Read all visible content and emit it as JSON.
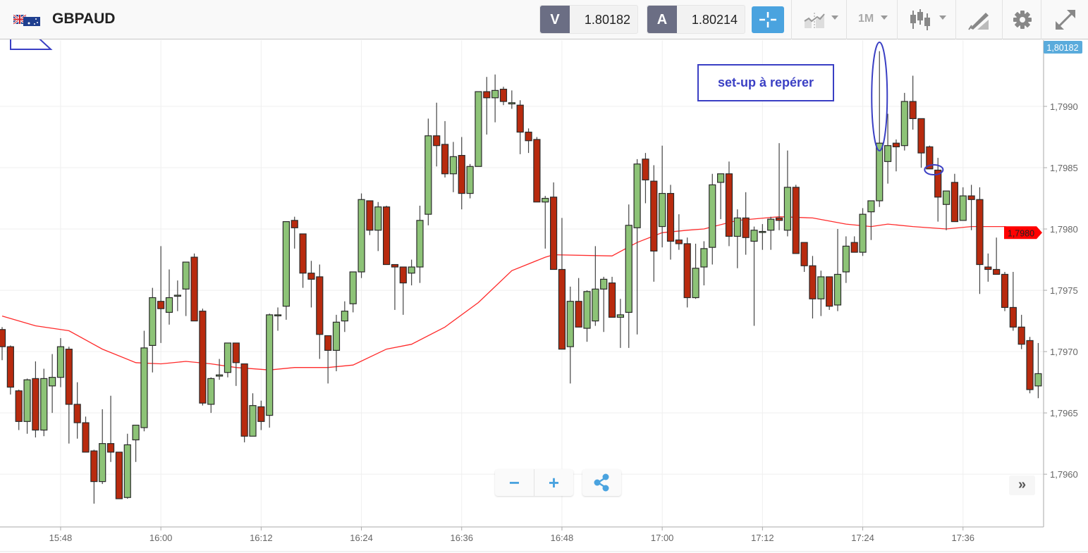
{
  "header": {
    "symbol": "GBPAUD",
    "flag_icon": "gb-au-flag-icon",
    "sell": {
      "label": "V",
      "value": "1.80182"
    },
    "buy": {
      "label": "A",
      "value": "1.80214"
    },
    "timeframe": "1M",
    "icons": [
      "crosshair-icon",
      "chart-type-icon",
      "timeframe-dropdown",
      "candles-icon",
      "drawing-tools-icon",
      "gear-icon",
      "fullscreen-icon"
    ]
  },
  "annotation": {
    "text": "set-up à repérer",
    "color": "#3a3fc4"
  },
  "controls": {
    "zoom_out": "−",
    "zoom_in": "+",
    "scroll_right": "»"
  },
  "colors": {
    "up": "#8dc377",
    "down": "#b82a0e",
    "ma": "#ff2b2b",
    "bid_tag": "#5aabdc",
    "ma_tag": "#ff0000",
    "accent": "#4aa3df"
  },
  "chart_data": {
    "type": "candlestick",
    "title": "GBPAUD",
    "interval_minutes": 1,
    "start_time": "15:41",
    "ylim": [
      1.79557,
      1.79954
    ],
    "grid": true,
    "y_ticks": [
      1.796,
      1.7965,
      1.797,
      1.7975,
      1.798,
      1.7985,
      1.799
    ],
    "y_tick_labels": [
      "1,7960",
      "1,7965",
      "1,7970",
      "1,7975",
      "1,7980",
      "1,7985",
      "1,7990"
    ],
    "x_ticks": [
      {
        "i": 8,
        "label": "15:48"
      },
      {
        "i": 20,
        "label": "16:00"
      },
      {
        "i": 32,
        "label": "16:12"
      },
      {
        "i": 44,
        "label": "16:24"
      },
      {
        "i": 56,
        "label": "16:36"
      },
      {
        "i": 68,
        "label": "16:48"
      },
      {
        "i": 80,
        "label": "17:00"
      },
      {
        "i": 92,
        "label": "17:12"
      },
      {
        "i": 104,
        "label": "17:24"
      },
      {
        "i": 116,
        "label": "17:36"
      }
    ],
    "bid_tag": "1,80182",
    "ma_tag": "1,7980",
    "ohlc_fields": [
      "open",
      "high",
      "low",
      "close"
    ],
    "ohlc": [
      [
        1.79718,
        1.7972,
        1.79693,
        1.79704
      ],
      [
        1.79704,
        1.79705,
        1.79665,
        1.79671
      ],
      [
        1.79668,
        1.79669,
        1.79636,
        1.79643
      ],
      [
        1.79643,
        1.79678,
        1.79633,
        1.79677
      ],
      [
        1.79678,
        1.79692,
        1.7963,
        1.79636
      ],
      [
        1.79636,
        1.79686,
        1.79631,
        1.79678
      ],
      [
        1.79672,
        1.79698,
        1.7965,
        1.79679
      ],
      [
        1.79679,
        1.79711,
        1.79671,
        1.79704
      ],
      [
        1.79702,
        1.79704,
        1.79625,
        1.79657
      ],
      [
        1.79657,
        1.79675,
        1.79629,
        1.79642
      ],
      [
        1.79642,
        1.79647,
        1.79618,
        1.79618
      ],
      [
        1.79619,
        1.7962,
        1.79576,
        1.79594
      ],
      [
        1.79594,
        1.79653,
        1.79592,
        1.79625
      ],
      [
        1.79625,
        1.79664,
        1.7961,
        1.79618
      ],
      [
        1.79618,
        1.79618,
        1.7958,
        1.7958
      ],
      [
        1.79581,
        1.79633,
        1.7958,
        1.79624
      ],
      [
        1.79628,
        1.7964,
        1.7961,
        1.7964
      ],
      [
        1.79638,
        1.79717,
        1.79635,
        1.79703
      ],
      [
        1.79705,
        1.79752,
        1.79683,
        1.79744
      ],
      [
        1.79741,
        1.79786,
        1.79707,
        1.79735
      ],
      [
        1.79732,
        1.79767,
        1.79722,
        1.79744
      ],
      [
        1.79746,
        1.79758,
        1.79733,
        1.79746
      ],
      [
        1.79751,
        1.79773,
        1.79729,
        1.79773
      ],
      [
        1.79777,
        1.7978,
        1.79725,
        1.79725
      ],
      [
        1.79733,
        1.79735,
        1.79656,
        1.79658
      ],
      [
        1.79657,
        1.79679,
        1.7965,
        1.79678
      ],
      [
        1.7968,
        1.79694,
        1.79677,
        1.79681
      ],
      [
        1.79683,
        1.79707,
        1.79679,
        1.79707
      ],
      [
        1.79707,
        1.79707,
        1.79672,
        1.79691
      ],
      [
        1.7969,
        1.7969,
        1.79626,
        1.79631
      ],
      [
        1.79631,
        1.79666,
        1.79631,
        1.79656
      ],
      [
        1.79655,
        1.7966,
        1.79636,
        1.79643
      ],
      [
        1.79648,
        1.79731,
        1.79638,
        1.7973
      ],
      [
        1.7973,
        1.79736,
        1.79717,
        1.7973
      ],
      [
        1.79737,
        1.79806,
        1.79726,
        1.79806
      ],
      [
        1.79807,
        1.7981,
        1.79784,
        1.79801
      ],
      [
        1.79796,
        1.79796,
        1.79752,
        1.79764
      ],
      [
        1.79764,
        1.79774,
        1.79736,
        1.79759
      ],
      [
        1.79761,
        1.79771,
        1.79694,
        1.79714
      ],
      [
        1.79713,
        1.79713,
        1.79674,
        1.79701
      ],
      [
        1.79701,
        1.7973,
        1.79684,
        1.79724
      ],
      [
        1.79725,
        1.79741,
        1.79716,
        1.79733
      ],
      [
        1.79739,
        1.79765,
        1.79732,
        1.79765
      ],
      [
        1.79765,
        1.79829,
        1.7976,
        1.79824
      ],
      [
        1.79823,
        1.79823,
        1.79795,
        1.79799
      ],
      [
        1.79799,
        1.79822,
        1.79782,
        1.79818
      ],
      [
        1.79818,
        1.79819,
        1.79771,
        1.79771
      ],
      [
        1.79771,
        1.79771,
        1.79734,
        1.79769
      ],
      [
        1.79769,
        1.79769,
        1.7973,
        1.79756
      ],
      [
        1.79764,
        1.79775,
        1.79754,
        1.79769
      ],
      [
        1.79769,
        1.79819,
        1.79756,
        1.79807
      ],
      [
        1.79812,
        1.7989,
        1.79803,
        1.79876
      ],
      [
        1.79876,
        1.79903,
        1.79851,
        1.79868
      ],
      [
        1.79869,
        1.79888,
        1.79842,
        1.79845
      ],
      [
        1.79845,
        1.79871,
        1.7983,
        1.79859
      ],
      [
        1.7986,
        1.79875,
        1.79816,
        1.79829
      ],
      [
        1.79829,
        1.79853,
        1.79825,
        1.79851
      ],
      [
        1.79851,
        1.79912,
        1.79851,
        1.79912
      ],
      [
        1.79912,
        1.79924,
        1.79877,
        1.79907
      ],
      [
        1.79907,
        1.79926,
        1.79887,
        1.79913
      ],
      [
        1.79914,
        1.79916,
        1.79901,
        1.79904
      ],
      [
        1.79902,
        1.79913,
        1.79898,
        1.79903
      ],
      [
        1.79901,
        1.79905,
        1.79861,
        1.79879
      ],
      [
        1.79879,
        1.79882,
        1.79862,
        1.79872
      ],
      [
        1.79873,
        1.79875,
        1.79822,
        1.79822
      ],
      [
        1.79822,
        1.79827,
        1.79784,
        1.79825
      ],
      [
        1.79826,
        1.79838,
        1.79767,
        1.79767
      ],
      [
        1.79767,
        1.79809,
        1.79702,
        1.79702
      ],
      [
        1.79704,
        1.79753,
        1.79674,
        1.79741
      ],
      [
        1.79741,
        1.7976,
        1.7972,
        1.7972
      ],
      [
        1.79719,
        1.7975,
        1.79708,
        1.79749
      ],
      [
        1.79725,
        1.79786,
        1.79721,
        1.79751
      ],
      [
        1.79751,
        1.79761,
        1.79716,
        1.79759
      ],
      [
        1.79756,
        1.79761,
        1.79728,
        1.79728
      ],
      [
        1.79728,
        1.79743,
        1.79703,
        1.7973
      ],
      [
        1.79732,
        1.7982,
        1.79703,
        1.79803
      ],
      [
        1.79801,
        1.79857,
        1.79714,
        1.79853
      ],
      [
        1.79857,
        1.79862,
        1.79821,
        1.7984
      ],
      [
        1.79839,
        1.79852,
        1.79757,
        1.79782
      ],
      [
        1.79802,
        1.79868,
        1.79785,
        1.79829
      ],
      [
        1.79829,
        1.79836,
        1.79775,
        1.7979
      ],
      [
        1.79791,
        1.79812,
        1.79783,
        1.79788
      ],
      [
        1.79788,
        1.79793,
        1.79736,
        1.79744
      ],
      [
        1.79744,
        1.79788,
        1.79743,
        1.79768
      ],
      [
        1.79769,
        1.7979,
        1.79754,
        1.79784
      ],
      [
        1.79785,
        1.79845,
        1.79771,
        1.79836
      ],
      [
        1.79838,
        1.79845,
        1.79808,
        1.79845
      ],
      [
        1.79845,
        1.79855,
        1.79786,
        1.79794
      ],
      [
        1.79794,
        1.79816,
        1.79768,
        1.79809
      ],
      [
        1.79809,
        1.7983,
        1.79779,
        1.79793
      ],
      [
        1.7979,
        1.79802,
        1.79721,
        1.79799
      ],
      [
        1.79798,
        1.79804,
        1.79783,
        1.79798
      ],
      [
        1.79799,
        1.7981,
        1.79783,
        1.79808
      ],
      [
        1.79809,
        1.7987,
        1.79799,
        1.79807
      ],
      [
        1.79799,
        1.79864,
        1.79794,
        1.79834
      ],
      [
        1.79834,
        1.79836,
        1.7978,
        1.7978
      ],
      [
        1.79789,
        1.79789,
        1.79765,
        1.7977
      ],
      [
        1.7977,
        1.79778,
        1.79727,
        1.79743
      ],
      [
        1.79743,
        1.79766,
        1.79729,
        1.79761
      ],
      [
        1.79761,
        1.79761,
        1.79734,
        1.79737
      ],
      [
        1.79738,
        1.798,
        1.79733,
        1.79763
      ],
      [
        1.79765,
        1.79794,
        1.79756,
        1.79786
      ],
      [
        1.79789,
        1.79794,
        1.79781,
        1.79781
      ],
      [
        1.79781,
        1.79817,
        1.79778,
        1.79812
      ],
      [
        1.79814,
        1.79823,
        1.79791,
        1.79823
      ],
      [
        1.79823,
        1.79945,
        1.79818,
        1.7987
      ],
      [
        1.79855,
        1.79894,
        1.79837,
        1.79868
      ],
      [
        1.7987,
        1.79873,
        1.79847,
        1.79867
      ],
      [
        1.79868,
        1.79911,
        1.79864,
        1.79904
      ],
      [
        1.79904,
        1.79925,
        1.79881,
        1.7989
      ],
      [
        1.7989,
        1.7989,
        1.7985,
        1.79862
      ],
      [
        1.79867,
        1.79868,
        1.79849,
        1.79849
      ],
      [
        1.79848,
        1.79858,
        1.79806,
        1.79826
      ],
      [
        1.7982,
        1.79831,
        1.79799,
        1.79831
      ],
      [
        1.79838,
        1.79845,
        1.79806,
        1.79806
      ],
      [
        1.79807,
        1.79834,
        1.79807,
        1.79827
      ],
      [
        1.79827,
        1.79836,
        1.79799,
        1.79824
      ],
      [
        1.79824,
        1.79834,
        1.79747,
        1.79771
      ],
      [
        1.79769,
        1.7978,
        1.79757,
        1.79767
      ],
      [
        1.79767,
        1.79793,
        1.79763,
        1.79763
      ],
      [
        1.79763,
        1.79765,
        1.79733,
        1.79736
      ],
      [
        1.79736,
        1.79765,
        1.79717,
        1.7972
      ],
      [
        1.7972,
        1.7973,
        1.79702,
        1.79706
      ],
      [
        1.79709,
        1.79712,
        1.79666,
        1.79669
      ],
      [
        1.79672,
        1.79707,
        1.79662,
        1.79682
      ]
    ],
    "moving_average": [
      [
        1,
        1.79729
      ],
      [
        5,
        1.79721
      ],
      [
        9,
        1.79717
      ],
      [
        13,
        1.79702
      ],
      [
        17,
        1.79691
      ],
      [
        20,
        1.7969
      ],
      [
        23,
        1.79692
      ],
      [
        26,
        1.7969
      ],
      [
        29,
        1.79687
      ],
      [
        33,
        1.79685
      ],
      [
        36,
        1.79687
      ],
      [
        40,
        1.79687
      ],
      [
        43,
        1.79689
      ],
      [
        47,
        1.79702
      ],
      [
        50,
        1.79706
      ],
      [
        54,
        1.7972
      ],
      [
        58,
        1.7974
      ],
      [
        62,
        1.79766
      ],
      [
        66,
        1.79777
      ],
      [
        67,
        1.79779
      ],
      [
        74,
        1.79778
      ],
      [
        77,
        1.79789
      ],
      [
        80,
        1.79797
      ],
      [
        83,
        1.79799
      ],
      [
        85,
        1.798
      ],
      [
        89,
        1.79807
      ],
      [
        94,
        1.7981
      ],
      [
        98,
        1.79809
      ],
      [
        102,
        1.79804
      ],
      [
        105,
        1.79802
      ],
      [
        107,
        1.79804
      ],
      [
        110,
        1.79802
      ],
      [
        114,
        1.798
      ],
      [
        117,
        1.79802
      ],
      [
        121,
        1.79802
      ],
      [
        125,
        1.79797
      ]
    ],
    "highlights": [
      {
        "candle": 106,
        "target": "upper wick"
      },
      {
        "candle": 112,
        "target": "close"
      }
    ]
  }
}
